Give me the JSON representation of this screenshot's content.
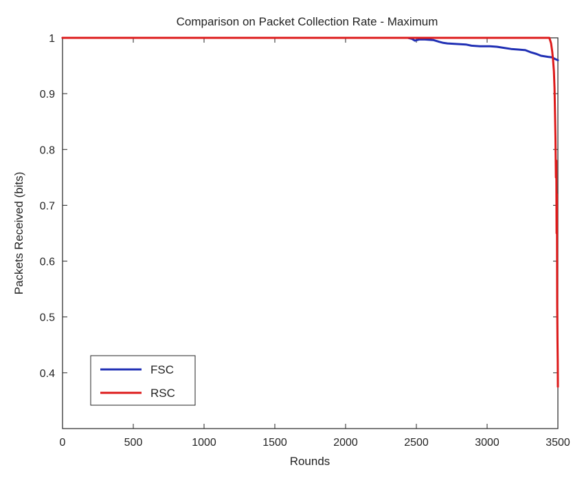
{
  "chart_data": {
    "type": "line",
    "title": "Comparison on Packet Collection Rate - Maximum",
    "xlabel": "Rounds",
    "ylabel": "Packets Received (bits)",
    "xlim": [
      0,
      3500
    ],
    "ylim": [
      0.3,
      1.0
    ],
    "xticks": [
      0,
      500,
      1000,
      1500,
      2000,
      2500,
      3000,
      3500
    ],
    "yticks": [
      0.4,
      0.5,
      0.6,
      0.7,
      0.8,
      0.9,
      1.0
    ],
    "xtick_labels": [
      "0",
      "500",
      "1000",
      "1500",
      "2000",
      "2500",
      "3000",
      "3500"
    ],
    "ytick_labels": [
      "0.4",
      "0.5",
      "0.6",
      "0.7",
      "0.8",
      "0.9",
      "1"
    ],
    "grid": false,
    "legend_position": "bottom-left",
    "series": [
      {
        "name": "FSC",
        "color": "#1f2fb4",
        "x": [
          0,
          2440,
          2470,
          2490,
          2520,
          2560,
          2620,
          2660,
          2690,
          2720,
          2780,
          2850,
          2890,
          2950,
          3020,
          3070,
          3120,
          3170,
          3220,
          3270,
          3310,
          3350,
          3380,
          3430,
          3460,
          3480,
          3500
        ],
        "y": [
          1.0,
          1.0,
          0.998,
          0.995,
          0.997,
          0.997,
          0.996,
          0.993,
          0.991,
          0.99,
          0.989,
          0.988,
          0.986,
          0.985,
          0.985,
          0.984,
          0.982,
          0.98,
          0.979,
          0.978,
          0.974,
          0.971,
          0.968,
          0.966,
          0.965,
          0.962,
          0.96
        ]
      },
      {
        "name": "RSC",
        "color": "#dd1a1a",
        "x": [
          0,
          3440,
          3452,
          3460,
          3466,
          3472,
          3476,
          3480,
          3483,
          3486,
          3489,
          3491,
          3493,
          3495,
          3497,
          3499,
          3500
        ],
        "y": [
          1.0,
          1.0,
          0.99,
          0.975,
          0.96,
          0.94,
          0.91,
          0.86,
          0.82,
          0.75,
          0.78,
          0.65,
          0.72,
          0.52,
          0.46,
          0.42,
          0.375
        ]
      }
    ]
  }
}
